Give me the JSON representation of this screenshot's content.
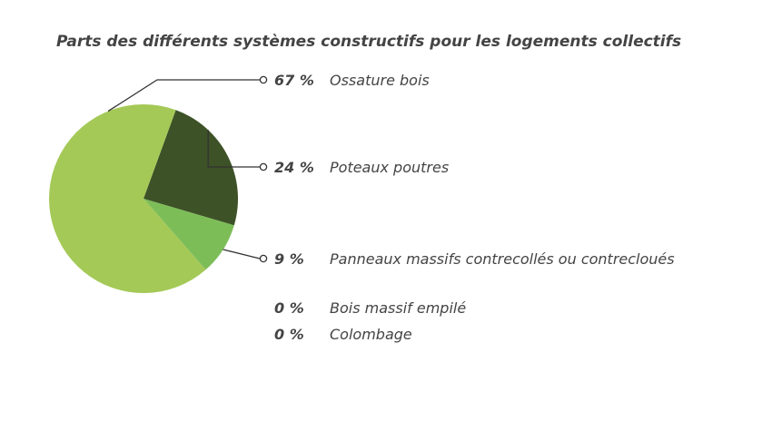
{
  "chart_data": {
    "type": "pie",
    "title": "Parts des différents systèmes constructifs pour les logements collectifs",
    "slices": [
      {
        "label": "Ossature bois",
        "value": 67,
        "value_text": "67 %",
        "color": "#a4c957"
      },
      {
        "label": "Poteaux poutres",
        "value": 24,
        "value_text": "24 %",
        "color": "#3d5227"
      },
      {
        "label": "Panneaux massifs contrecollés ou contrecloués",
        "value": 9,
        "value_text": "9 %",
        "color": "#7dbd58"
      },
      {
        "label": "Bois massif empilé",
        "value": 0,
        "value_text": "0 %",
        "color": "#a4c957"
      },
      {
        "label": "Colombage",
        "value": 0,
        "value_text": "0 %",
        "color": "#a4c957"
      }
    ]
  }
}
